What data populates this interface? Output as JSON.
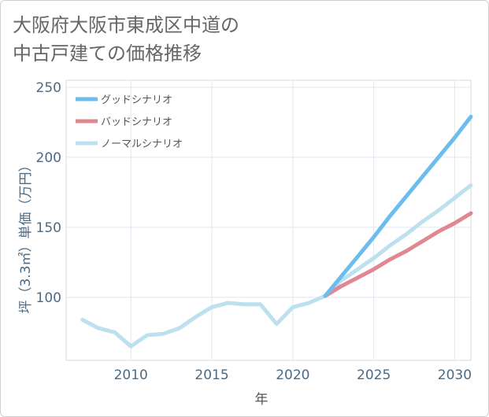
{
  "title_lines": [
    "大阪府大阪市東成区中道の",
    "中古戸建ての価格推移"
  ],
  "chart_data": {
    "type": "line",
    "xlabel": "年",
    "ylabel": "坪（3.3㎡）単価（万円）",
    "xlim": [
      2006,
      2031
    ],
    "ylim": [
      55,
      255
    ],
    "xticks": [
      2010,
      2015,
      2020,
      2025,
      2030
    ],
    "yticks": [
      100,
      150,
      200,
      250
    ],
    "legend_position": "top-left",
    "series": [
      {
        "name": "グッドシナリオ",
        "color": "#6cbcee",
        "x": [
          2022,
          2023,
          2024,
          2025,
          2026,
          2027,
          2028,
          2029,
          2030,
          2031
        ],
        "y": [
          101,
          115,
          129,
          143,
          158,
          172,
          186,
          200,
          214,
          229
        ]
      },
      {
        "name": "バッドシナリオ",
        "color": "#e08891",
        "x": [
          2022,
          2023,
          2024,
          2025,
          2026,
          2027,
          2028,
          2029,
          2030,
          2031
        ],
        "y": [
          101,
          108,
          114,
          120,
          127,
          133,
          140,
          147,
          153,
          160
        ]
      },
      {
        "name": "ノーマルシナリオ",
        "color": "#bde0ee",
        "x": [
          2007,
          2008,
          2009,
          2010,
          2011,
          2012,
          2013,
          2014,
          2015,
          2016,
          2017,
          2018,
          2019,
          2020,
          2021,
          2022,
          2023,
          2024,
          2025,
          2026,
          2027,
          2028,
          2029,
          2030,
          2031
        ],
        "y": [
          84,
          78,
          75,
          65,
          73,
          74,
          78,
          86,
          93,
          96,
          95,
          95,
          81,
          93,
          96,
          101,
          112,
          120,
          128,
          137,
          145,
          154,
          162,
          171,
          180
        ]
      }
    ]
  }
}
